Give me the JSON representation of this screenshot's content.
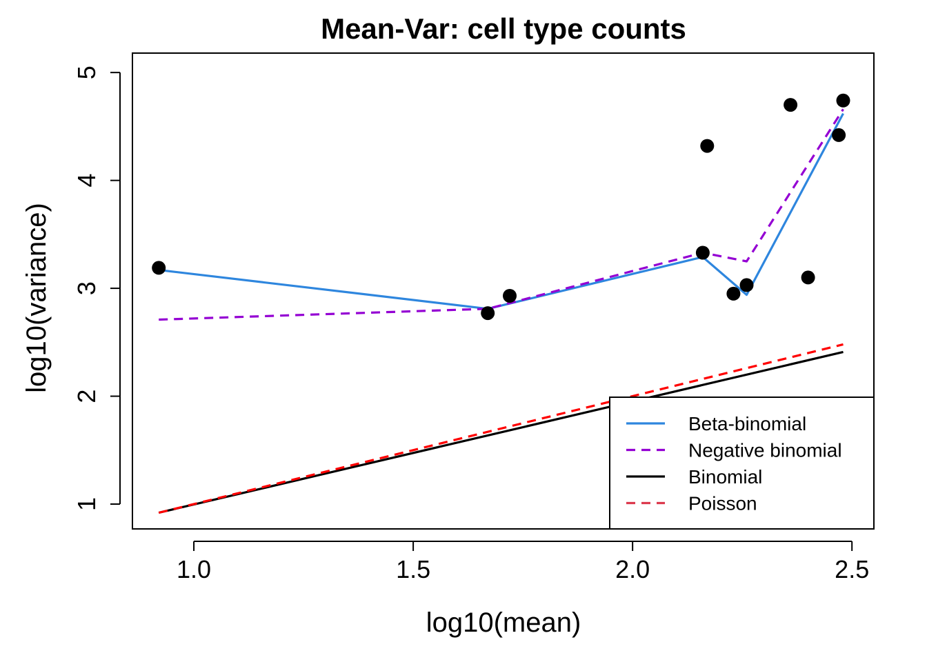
{
  "chart_data": {
    "type": "scatter",
    "title": "Mean-Var: cell type counts",
    "xlabel": "log10(mean)",
    "ylabel": "log10(variance)",
    "xlim": [
      0.86,
      2.55
    ],
    "ylim": [
      0.77,
      5.18
    ],
    "x_ticks": [
      1.0,
      1.5,
      2.0,
      2.5
    ],
    "x_tick_labels": [
      "1.0",
      "1.5",
      "2.0",
      "2.5"
    ],
    "y_ticks": [
      1,
      2,
      3,
      4,
      5
    ],
    "y_tick_labels": [
      "1",
      "2",
      "3",
      "4",
      "5"
    ],
    "grid": false,
    "legend_position": "bottom-right",
    "points": {
      "x": [
        0.92,
        1.67,
        1.72,
        2.16,
        2.17,
        2.23,
        2.26,
        2.36,
        2.4,
        2.47,
        2.48
      ],
      "y": [
        3.19,
        2.77,
        2.93,
        3.33,
        4.32,
        2.95,
        3.03,
        4.7,
        3.1,
        4.42,
        4.74
      ],
      "color": "#000000"
    },
    "series": [
      {
        "name": "Beta-binomial",
        "style": "solid",
        "color": "#2E86DE",
        "x": [
          0.92,
          1.67,
          2.16,
          2.26,
          2.48
        ],
        "y": [
          3.17,
          2.81,
          3.29,
          2.94,
          4.62
        ]
      },
      {
        "name": "Negative binomial",
        "style": "dashed",
        "color": "#9400D3",
        "x": [
          0.92,
          1.67,
          2.16,
          2.26,
          2.48
        ],
        "y": [
          2.71,
          2.81,
          3.33,
          3.25,
          4.66
        ]
      },
      {
        "name": "Binomial",
        "style": "solid",
        "color": "#000000",
        "x": [
          0.92,
          2.48
        ],
        "y": [
          0.92,
          2.41
        ]
      },
      {
        "name": "Poisson",
        "style": "dashed",
        "color": "#FF0000",
        "legend_color": "#DC3A4E",
        "x": [
          0.92,
          2.48
        ],
        "y": [
          0.92,
          2.48
        ]
      }
    ]
  }
}
